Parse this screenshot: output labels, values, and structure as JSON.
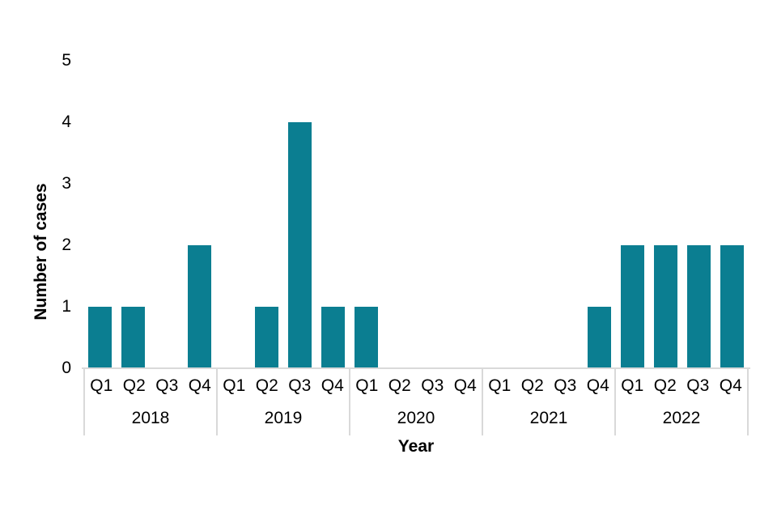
{
  "chart_data": {
    "type": "bar",
    "title": "",
    "xlabel": "Year",
    "ylabel": "Number of cases",
    "ylim": [
      0,
      5
    ],
    "yticks": [
      0,
      1,
      2,
      3,
      4,
      5
    ],
    "grid": false,
    "legend_position": "none",
    "bar_color": "#0b7e91",
    "axis_line_color": "#d9d9d9",
    "text_color": "#000000",
    "groups": [
      {
        "year": "2018",
        "quarters": [
          "Q1",
          "Q2",
          "Q3",
          "Q4"
        ],
        "values": [
          1,
          1,
          0,
          2
        ]
      },
      {
        "year": "2019",
        "quarters": [
          "Q1",
          "Q2",
          "Q3",
          "Q4"
        ],
        "values": [
          0,
          1,
          4,
          1
        ]
      },
      {
        "year": "2020",
        "quarters": [
          "Q1",
          "Q2",
          "Q3",
          "Q4"
        ],
        "values": [
          1,
          0,
          0,
          0
        ]
      },
      {
        "year": "2021",
        "quarters": [
          "Q1",
          "Q2",
          "Q3",
          "Q4"
        ],
        "values": [
          0,
          0,
          0,
          1
        ]
      },
      {
        "year": "2022",
        "quarters": [
          "Q1",
          "Q2",
          "Q3",
          "Q4"
        ],
        "values": [
          2,
          2,
          2,
          2
        ]
      }
    ]
  }
}
